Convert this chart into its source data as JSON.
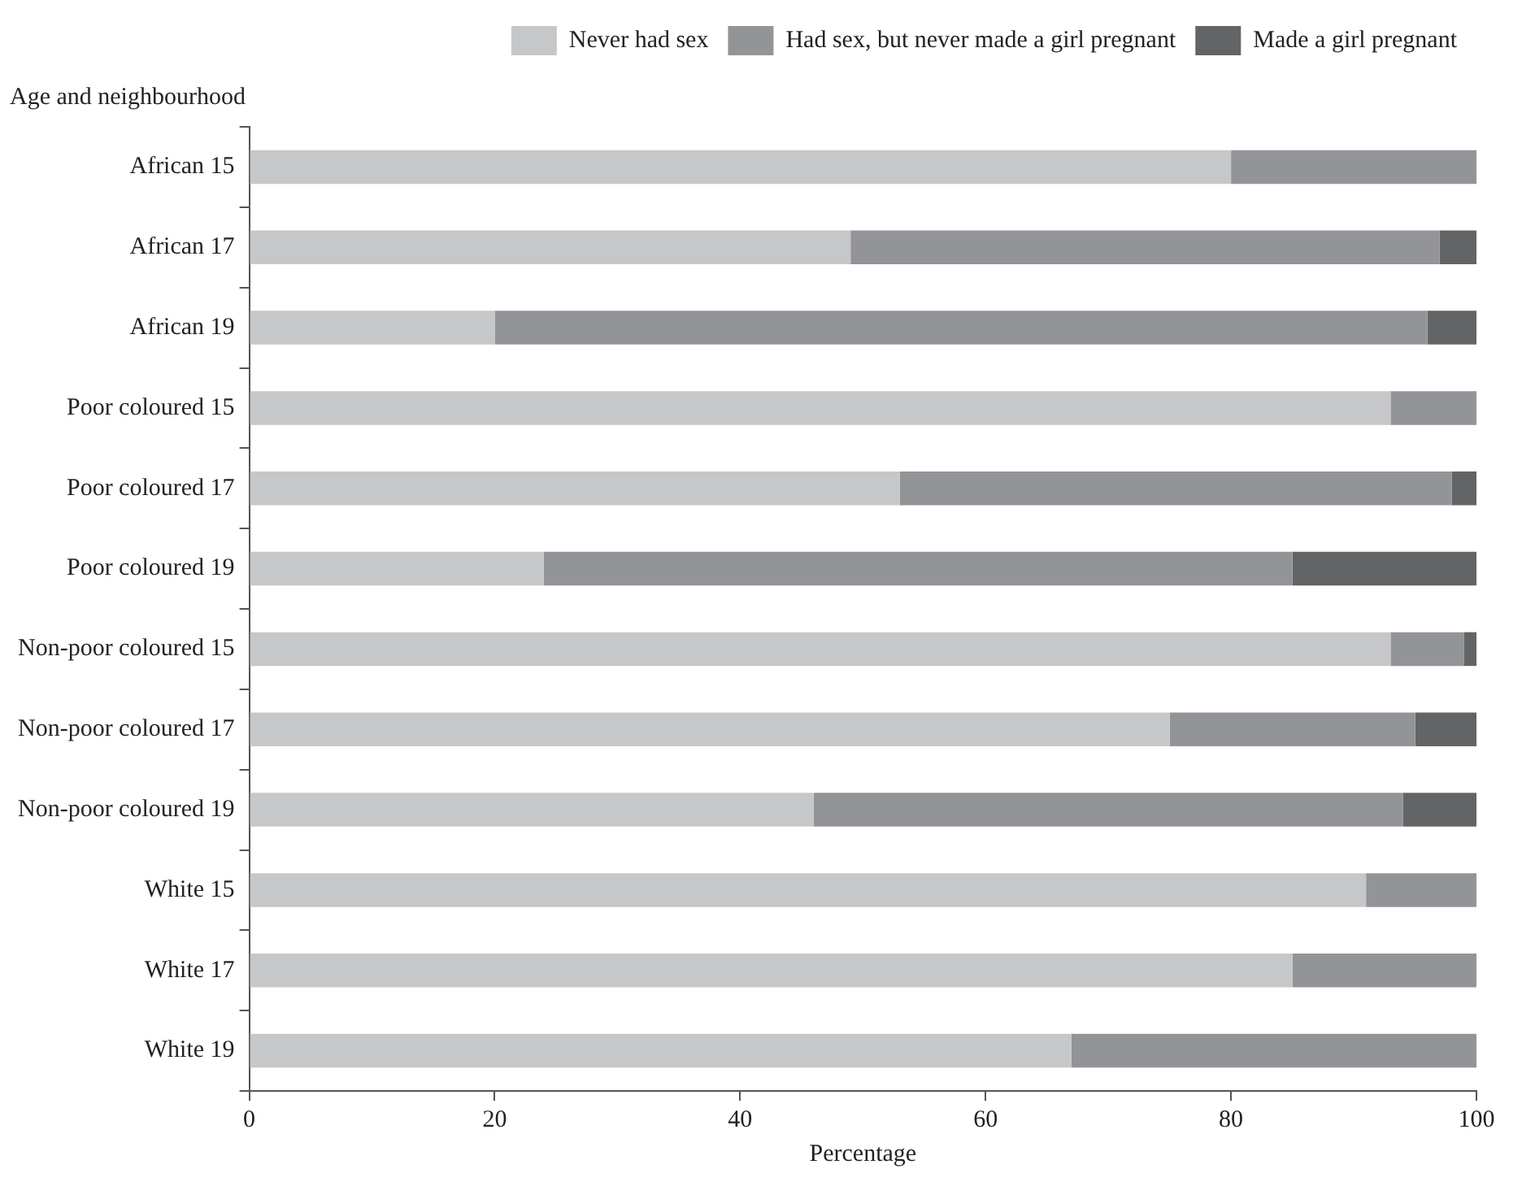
{
  "chart_data": {
    "type": "bar",
    "orientation": "horizontal",
    "stacked": true,
    "xlabel": "Percentage",
    "ylabel": "Age and neighbourhood",
    "categories": [
      "African 15",
      "African 17",
      "African 19",
      "Poor coloured 15",
      "Poor coloured 17",
      "Poor coloured 19",
      "Non-poor coloured 15",
      "Non-poor coloured 17",
      "Non-poor coloured 19",
      "White 15",
      "White 17",
      "White 19"
    ],
    "series": [
      {
        "name": "Never had sex",
        "color": "#c6c7c9",
        "values": [
          80,
          49,
          20,
          93,
          53,
          24,
          93,
          75,
          46,
          91,
          85,
          67
        ]
      },
      {
        "name": "Had sex, but never made a girl pregnant",
        "color": "#939497",
        "values": [
          20,
          48,
          76,
          7,
          45,
          61,
          6,
          20,
          48,
          9,
          15,
          33
        ]
      },
      {
        "name": "Made a girl pregnant",
        "color": "#636466",
        "values": [
          0,
          3,
          4,
          0,
          2,
          15,
          1,
          5,
          6,
          0,
          0,
          0
        ]
      }
    ],
    "xlim": [
      0,
      100
    ],
    "xticks": [
      0,
      20,
      40,
      60,
      80,
      100
    ],
    "grid": false,
    "legend": "top right"
  }
}
